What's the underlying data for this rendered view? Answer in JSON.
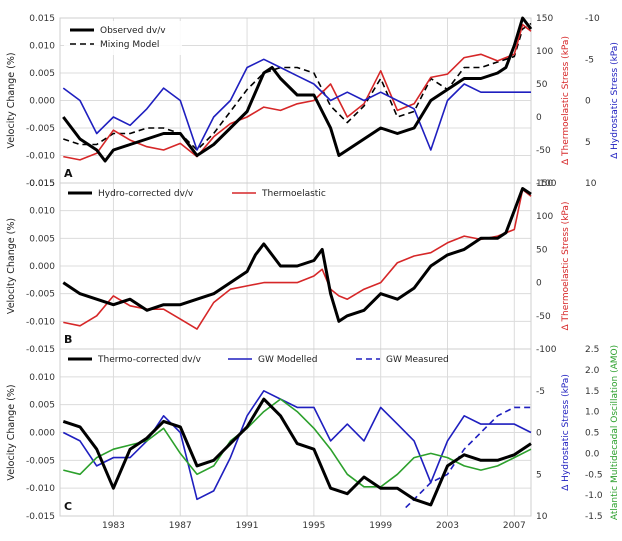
{
  "colors": {
    "observed": "#000000",
    "thermoelastic": "#d62728",
    "hydrostatic": "#1f1fbf",
    "amo": "#2ca02c",
    "grid": "#dcdcdc",
    "frame": "#cfcfcf"
  },
  "x_ticks": [
    "1983",
    "1987",
    "1991",
    "1995",
    "1999",
    "2003",
    "2007"
  ],
  "chart_data": [
    {
      "type": "line",
      "panel_label": "A",
      "xlim": [
        1979.8,
        2008.0
      ],
      "ylabel": "Velocity Change (%)",
      "ylim": [
        -0.015,
        0.015
      ],
      "y_ticks": [
        "0.015",
        "0.010",
        "0.005",
        "0.000",
        "-0.005",
        "-0.010",
        "-0.015"
      ],
      "right_axes": [
        {
          "label": "Δ Thermoelastic Stress (kPa)",
          "color": "#d62728",
          "ylim": [
            -100,
            150
          ],
          "ticks": [
            "150",
            "100",
            "50",
            "0",
            "-50",
            "-100"
          ]
        },
        {
          "label": "Δ Hydrostatic Stress (kPa)",
          "color": "#1f1fbf",
          "ylim": [
            10,
            -10
          ],
          "inverted": true,
          "ticks": [
            "-10",
            "-5",
            "0",
            "5",
            "10"
          ]
        }
      ],
      "legend": {
        "position": "top-left",
        "entries": [
          "Observed dv/v",
          "Mixing Model"
        ]
      },
      "series": [
        {
          "name": "Observed dv/v",
          "axis": "left",
          "style": "solid-bold",
          "x": [
            1980.0,
            1981.0,
            1982.0,
            1982.5,
            1983.0,
            1984.0,
            1985.0,
            1986.0,
            1987.0,
            1988.0,
            1989.0,
            1990.0,
            1991.0,
            1992.0,
            1992.5,
            1993.0,
            1994.0,
            1995.0,
            1996.0,
            1996.5,
            1997.0,
            1998.0,
            1999.0,
            2000.0,
            2001.0,
            2002.0,
            2003.0,
            2004.0,
            2005.0,
            2006.0,
            2006.5,
            2007.0,
            2007.5,
            2008.0
          ],
          "y": [
            -0.003,
            -0.007,
            -0.009,
            -0.011,
            -0.009,
            -0.008,
            -0.007,
            -0.006,
            -0.006,
            -0.01,
            -0.008,
            -0.005,
            -0.002,
            0.005,
            0.006,
            0.004,
            0.001,
            0.001,
            -0.005,
            -0.01,
            -0.009,
            -0.007,
            -0.005,
            -0.006,
            -0.005,
            0.0,
            0.002,
            0.004,
            0.004,
            0.005,
            0.006,
            0.01,
            0.015,
            0.013
          ]
        },
        {
          "name": "Mixing Model",
          "axis": "left",
          "style": "dashed",
          "x": [
            1980.0,
            1981.0,
            1982.0,
            1983.0,
            1984.0,
            1985.0,
            1986.0,
            1987.0,
            1988.0,
            1989.0,
            1990.0,
            1991.0,
            1992.0,
            1993.0,
            1994.0,
            1995.0,
            1996.0,
            1997.0,
            1998.0,
            1999.0,
            2000.0,
            2001.0,
            2002.0,
            2003.0,
            2004.0,
            2005.0,
            2006.0,
            2007.0,
            2007.5,
            2008.0
          ],
          "y": [
            -0.007,
            -0.008,
            -0.008,
            -0.006,
            -0.006,
            -0.005,
            -0.005,
            -0.006,
            -0.009,
            -0.006,
            -0.002,
            0.002,
            0.005,
            0.006,
            0.006,
            0.005,
            -0.001,
            -0.004,
            -0.001,
            0.004,
            -0.003,
            -0.002,
            0.004,
            0.002,
            0.006,
            0.006,
            0.007,
            0.008,
            0.013,
            0.014
          ]
        },
        {
          "name": "Thermoelastic",
          "axis": "right1",
          "style": "solid",
          "x": [
            1980.0,
            1981.0,
            1982.0,
            1983.0,
            1984.0,
            1985.0,
            1986.0,
            1987.0,
            1988.0,
            1989.0,
            1990.0,
            1991.0,
            1992.0,
            1993.0,
            1994.0,
            1995.0,
            1996.0,
            1997.0,
            1998.0,
            1999.0,
            2000.0,
            2001.0,
            2002.0,
            2003.0,
            2004.0,
            2005.0,
            2006.0,
            2007.0,
            2007.5,
            2008.0
          ],
          "y": [
            -60,
            -65,
            -55,
            -20,
            -35,
            -45,
            -50,
            -40,
            -60,
            -30,
            -10,
            0,
            15,
            10,
            20,
            25,
            50,
            0,
            20,
            70,
            10,
            20,
            60,
            65,
            90,
            95,
            85,
            95,
            140,
            130
          ]
        },
        {
          "name": "Hydrostatic",
          "axis": "right2",
          "style": "solid",
          "x": [
            1980.0,
            1981.0,
            1982.0,
            1983.0,
            1984.0,
            1985.0,
            1986.0,
            1987.0,
            1988.0,
            1989.0,
            1990.0,
            1991.0,
            1992.0,
            1993.0,
            1994.0,
            1995.0,
            1996.0,
            1997.0,
            1998.0,
            1999.0,
            2000.0,
            2001.0,
            2002.0,
            2003.0,
            2004.0,
            2005.0,
            2006.0,
            2007.0,
            2008.0
          ],
          "y": [
            -1.5,
            0,
            4,
            2,
            3,
            1,
            -1.5,
            0,
            6,
            2,
            0,
            -4,
            -5,
            -4,
            -3,
            -2,
            0,
            -1,
            0,
            -1,
            0,
            1,
            6,
            0,
            -2,
            -1,
            -1,
            -1,
            -1
          ]
        }
      ]
    },
    {
      "type": "line",
      "panel_label": "B",
      "xlim": [
        1979.8,
        2008.0
      ],
      "ylabel": "Velocity Change (%)",
      "ylim": [
        -0.015,
        0.015
      ],
      "y_ticks": [
        "0.015",
        "0.010",
        "0.005",
        "0.000",
        "-0.005",
        "-0.010",
        "-0.015"
      ],
      "right_axes": [
        {
          "label": "Δ Thermoelastic Stress (kPa)",
          "color": "#d62728",
          "ylim": [
            -100,
            150
          ],
          "ticks": [
            "150",
            "100",
            "50",
            "0",
            "-50",
            "-100"
          ]
        }
      ],
      "legend": {
        "position": "top",
        "entries": [
          "Hydro-corrected dv/v",
          "Thermoelastic"
        ]
      },
      "series": [
        {
          "name": "Hydro-corrected dv/v",
          "axis": "left",
          "style": "solid-bold",
          "x": [
            1980.0,
            1981.0,
            1982.0,
            1983.0,
            1984.0,
            1985.0,
            1986.0,
            1987.0,
            1988.0,
            1989.0,
            1990.0,
            1991.0,
            1991.5,
            1992.0,
            1992.5,
            1993.0,
            1994.0,
            1995.0,
            1995.5,
            1996.0,
            1996.5,
            1997.0,
            1998.0,
            1999.0,
            2000.0,
            2001.0,
            2002.0,
            2003.0,
            2004.0,
            2005.0,
            2006.0,
            2006.5,
            2007.0,
            2007.5,
            2008.0
          ],
          "y": [
            -0.003,
            -0.005,
            -0.006,
            -0.007,
            -0.006,
            -0.008,
            -0.007,
            -0.007,
            -0.006,
            -0.005,
            -0.003,
            -0.001,
            0.002,
            0.004,
            0.002,
            0.0,
            0.0,
            0.001,
            0.003,
            -0.005,
            -0.01,
            -0.009,
            -0.008,
            -0.005,
            -0.006,
            -0.004,
            0.0,
            0.002,
            0.003,
            0.005,
            0.005,
            0.006,
            0.01,
            0.014,
            0.013
          ]
        },
        {
          "name": "Thermoelastic",
          "axis": "right1",
          "style": "solid",
          "x": [
            1980.0,
            1981.0,
            1982.0,
            1983.0,
            1984.0,
            1985.0,
            1986.0,
            1987.0,
            1988.0,
            1989.0,
            1990.0,
            1991.0,
            1992.0,
            1993.0,
            1994.0,
            1995.0,
            1995.5,
            1996.0,
            1996.5,
            1997.0,
            1998.0,
            1999.0,
            2000.0,
            2001.0,
            2002.0,
            2003.0,
            2004.0,
            2005.0,
            2006.0,
            2007.0,
            2007.5,
            2008.0
          ],
          "y": [
            -60,
            -65,
            -50,
            -20,
            -35,
            -40,
            -40,
            -55,
            -70,
            -30,
            -10,
            -5,
            0,
            0,
            0,
            10,
            20,
            -10,
            -20,
            -25,
            -10,
            0,
            30,
            40,
            45,
            60,
            70,
            65,
            70,
            80,
            140,
            130
          ]
        }
      ]
    },
    {
      "type": "line",
      "panel_label": "C",
      "xlim": [
        1979.8,
        2008.0
      ],
      "ylabel": "Velocity Change (%)",
      "ylim": [
        -0.015,
        0.015
      ],
      "y_ticks": [
        "0.010",
        "0.005",
        "0.000",
        "-0.005",
        "-0.010",
        "-0.015"
      ],
      "right_axes": [
        {
          "label": "Δ Hydrostatic Stress (kPa)",
          "color": "#1f1fbf",
          "ylim": [
            10,
            -10
          ],
          "inverted": true,
          "ticks": [
            "-5",
            "0",
            "5",
            "10"
          ]
        },
        {
          "label": "Atlantic Multidecadal Oscillation (AMO)",
          "color": "#2ca02c",
          "ylim": [
            -1.5,
            2.5
          ],
          "ticks": [
            "2.5",
            "2.0",
            "1.5",
            "1.0",
            "0.5",
            "0.0",
            "-0.5",
            "-1.0",
            "-1.5"
          ]
        }
      ],
      "legend": {
        "position": "top",
        "entries": [
          "Thermo-corrected dv/v",
          "GW Modelled",
          "GW Measured"
        ]
      },
      "series": [
        {
          "name": "Thermo-corrected dv/v",
          "axis": "left",
          "style": "solid-bold",
          "x": [
            1980.0,
            1981.0,
            1982.0,
            1983.0,
            1984.0,
            1985.0,
            1986.0,
            1987.0,
            1988.0,
            1989.0,
            1990.0,
            1991.0,
            1992.0,
            1993.0,
            1994.0,
            1995.0,
            1996.0,
            1997.0,
            1998.0,
            1999.0,
            2000.0,
            2001.0,
            2002.0,
            2003.0,
            2004.0,
            2005.0,
            2006.0,
            2007.0,
            2008.0
          ],
          "y": [
            0.002,
            0.001,
            -0.003,
            -0.01,
            -0.003,
            -0.001,
            0.002,
            0.001,
            -0.006,
            -0.005,
            -0.002,
            0.001,
            0.006,
            0.003,
            -0.002,
            -0.003,
            -0.01,
            -0.011,
            -0.008,
            -0.01,
            -0.01,
            -0.012,
            -0.013,
            -0.006,
            -0.004,
            -0.005,
            -0.005,
            -0.004,
            -0.002
          ]
        },
        {
          "name": "GW Modelled",
          "axis": "right1",
          "style": "solid",
          "x": [
            1980.0,
            1981.0,
            1982.0,
            1983.0,
            1984.0,
            1985.0,
            1986.0,
            1987.0,
            1988.0,
            1989.0,
            1990.0,
            1991.0,
            1992.0,
            1993.0,
            1994.0,
            1995.0,
            1996.0,
            1997.0,
            1998.0,
            1999.0,
            2000.0,
            2001.0,
            2002.0,
            2003.0,
            2004.0,
            2005.0,
            2006.0,
            2007.0,
            2008.0
          ],
          "y": [
            0,
            1,
            4,
            3,
            3,
            1,
            -2,
            0,
            8,
            7,
            3,
            -2,
            -5,
            -4,
            -3,
            -3,
            1,
            -1,
            1,
            -3,
            -1,
            1,
            6,
            1,
            -2,
            -1,
            -1,
            -1,
            0
          ]
        },
        {
          "name": "GW Measured",
          "axis": "right1",
          "style": "dashed",
          "x": [
            2000.5,
            2001.0,
            2002.0,
            2003.0,
            2004.0,
            2005.0,
            2006.0,
            2007.0,
            2008.0
          ],
          "y": [
            9,
            8,
            6,
            5,
            2,
            0,
            -2,
            -3,
            -3
          ]
        },
        {
          "name": "Atlantic Multidecadal Oscillation (AMO)",
          "axis": "right2",
          "style": "solid",
          "x": [
            1980.0,
            1981.0,
            1982.0,
            1983.0,
            1984.0,
            1985.0,
            1986.0,
            1987.0,
            1988.0,
            1989.0,
            1990.0,
            1991.0,
            1992.0,
            1993.0,
            1994.0,
            1995.0,
            1996.0,
            1997.0,
            1998.0,
            1999.0,
            2000.0,
            2001.0,
            2002.0,
            2003.0,
            2004.0,
            2005.0,
            2006.0,
            2007.0,
            2008.0
          ],
          "y": [
            -0.4,
            -0.5,
            -0.1,
            0.1,
            0.2,
            0.3,
            0.6,
            0.0,
            -0.5,
            -0.3,
            0.3,
            0.6,
            1.0,
            1.3,
            1.0,
            0.6,
            0.1,
            -0.5,
            -0.8,
            -0.8,
            -0.5,
            -0.1,
            0.0,
            -0.1,
            -0.3,
            -0.4,
            -0.3,
            -0.1,
            0.1
          ]
        }
      ]
    }
  ]
}
